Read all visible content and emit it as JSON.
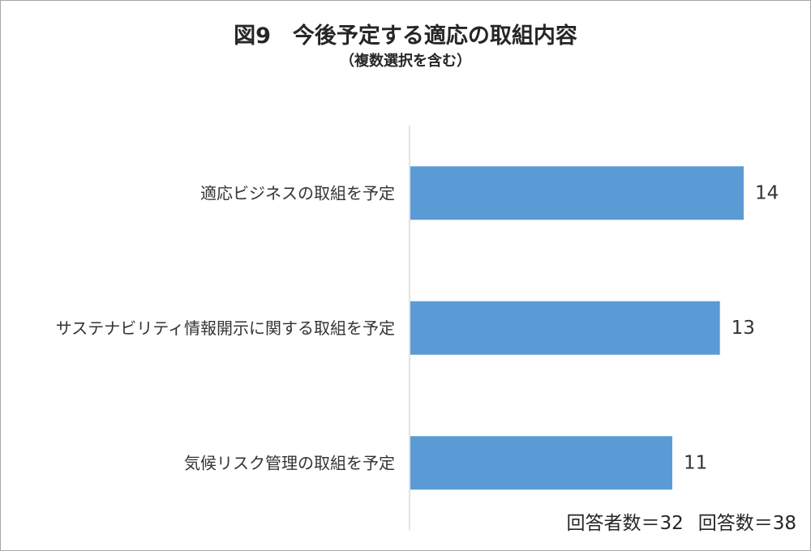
{
  "chart_data": {
    "type": "bar",
    "orientation": "horizontal",
    "title": "図9　今後予定する適応の取組内容",
    "subtitle": "（複数選択を含む）",
    "categories": [
      "適応ビジネスの取組を予定",
      "サステナビリティ情報開示に関する取組を予定",
      "気候リスク管理の取組を予定"
    ],
    "values": [
      14,
      13,
      11
    ],
    "data_labels": [
      "14",
      "13",
      "11"
    ],
    "xlim": [
      0,
      15
    ],
    "grid": false,
    "legend": "none",
    "bar_color": "#5b9bd5",
    "axis_color": "#d9d9d9"
  },
  "footnote": {
    "respondents": "回答者数＝32",
    "answers": "回答数＝38"
  }
}
